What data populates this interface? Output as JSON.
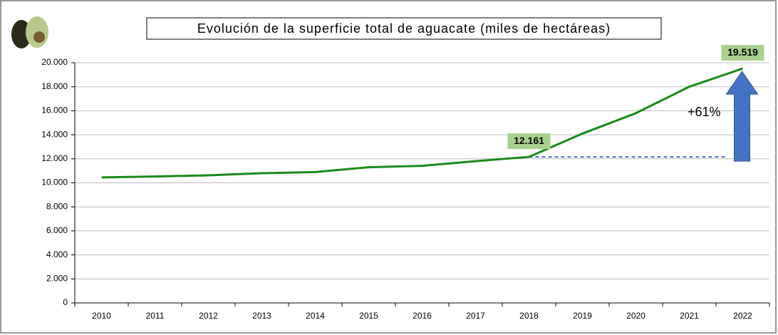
{
  "chart_data": {
    "type": "line",
    "title": "Evolución de la superficie total de aguacate (miles de hectáreas)",
    "categories": [
      "2010",
      "2011",
      "2012",
      "2013",
      "2014",
      "2015",
      "2016",
      "2017",
      "2018",
      "2019",
      "2020",
      "2021",
      "2022"
    ],
    "series": [
      {
        "name": null,
        "color": "#1a8a1a",
        "values": [
          10450,
          10530,
          10620,
          10800,
          10900,
          11300,
          11420,
          11800,
          12161,
          14100,
          15800,
          18000,
          19519
        ],
        "value_labels": [
          null,
          null,
          null,
          null,
          null,
          null,
          null,
          null,
          "12.161",
          null,
          null,
          null,
          "19.519"
        ]
      }
    ],
    "annotation": "+61%",
    "ylim": [
      0,
      20000
    ],
    "yticks": [
      {
        "value": 0,
        "label": "0"
      },
      {
        "value": 2000,
        "label": "2.000"
      },
      {
        "value": 4000,
        "label": "4.000"
      },
      {
        "value": 6000,
        "label": "6.000"
      },
      {
        "value": 8000,
        "label": "8.000"
      },
      {
        "value": 10000,
        "label": "10.000"
      },
      {
        "value": 12000,
        "label": "12.000"
      },
      {
        "value": 14000,
        "label": "14.000"
      },
      {
        "value": 16000,
        "label": "16.000"
      },
      {
        "value": 18000,
        "label": "18.000"
      },
      {
        "value": 20000,
        "label": "20.000"
      }
    ],
    "grid": true
  }
}
